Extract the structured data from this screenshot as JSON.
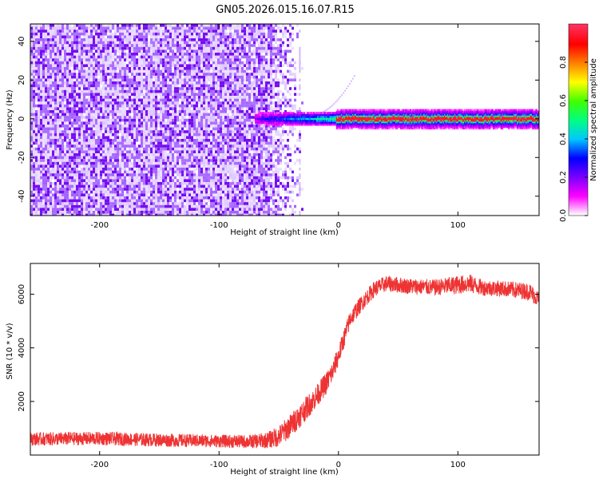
{
  "figure": {
    "title": "GN05.2026.015.16.07.R15"
  },
  "chart_data": [
    {
      "type": "heatmap",
      "xlabel": "Height of straight line (km)",
      "ylabel": "Frequency (Hz)",
      "xlim": [
        -258,
        168
      ],
      "ylim": [
        -50,
        49
      ],
      "x_ticks": [
        -200,
        -100,
        0,
        100
      ],
      "y_ticks": [
        -40,
        -20,
        0,
        20,
        40
      ],
      "x_tick_labels": [
        "-200",
        "-100",
        "0",
        "100"
      ],
      "y_tick_labels": [
        "-40",
        "-20",
        "0",
        "20",
        "40"
      ],
      "colorbar": {
        "label": "Normalized spectral amplitude",
        "range": [
          0,
          1
        ],
        "ticks": [
          0,
          0.2,
          0.4,
          0.6,
          0.8
        ],
        "tick_labels": [
          "0.0",
          "0.2",
          "0.4",
          "0.6",
          "0.8"
        ],
        "colormap": [
          "#ffffff",
          "#ff00ff",
          "#7a00ff",
          "#0000ff",
          "#00c8ff",
          "#00ff80",
          "#40ff00",
          "#ffff00",
          "#ff8000",
          "#ff0000",
          "#ff3060"
        ]
      },
      "description_regions": [
        {
          "x_range": [
            -258,
            -40
          ],
          "freq_range": [
            -50,
            49
          ],
          "amplitude": 0.1,
          "pattern": "noise"
        },
        {
          "x_range": [
            -70,
            -10
          ],
          "freq_range": [
            -2,
            2
          ],
          "amplitude": 0.35,
          "pattern": "emerging line"
        },
        {
          "x_range": [
            -5,
            168
          ],
          "freq_range": [
            -1,
            1
          ],
          "amplitude": 0.95,
          "pattern": "strong line at 0 Hz"
        }
      ],
      "colors": {
        "noise": "#7a00ff",
        "line_core": "#ff2020",
        "line_edge": "#00ff80"
      }
    },
    {
      "type": "line",
      "xlabel": "Height of straight line (km)",
      "ylabel": "SNR (10 * v/v)",
      "xlim": [
        -258,
        168
      ],
      "ylim": [
        0,
        7150
      ],
      "x_ticks": [
        -200,
        -100,
        0,
        100
      ],
      "y_ticks": [
        2000,
        4000,
        6000
      ],
      "x_tick_labels": [
        "-200",
        "-100",
        "0",
        "100"
      ],
      "y_tick_labels": [
        "2000",
        "4000",
        "6000"
      ],
      "series": [
        {
          "color": "#ee3333",
          "x": [
            -258,
            -200,
            -150,
            -100,
            -75,
            -60,
            -50,
            -40,
            -30,
            -20,
            -10,
            -5,
            0,
            5,
            10,
            20,
            30,
            40,
            50,
            60,
            80,
            100,
            110,
            120,
            140,
            160,
            168
          ],
          "y": [
            600,
            620,
            560,
            520,
            500,
            550,
            700,
            1100,
            1600,
            2100,
            2700,
            3100,
            3700,
            4400,
            5100,
            5700,
            6200,
            6400,
            6350,
            6300,
            6250,
            6350,
            6400,
            6250,
            6200,
            6100,
            5800
          ],
          "noise_amplitude": [
            250,
            250,
            250,
            240,
            250,
            300,
            400,
            450,
            450,
            420,
            420,
            400,
            380,
            360,
            330,
            300,
            300,
            300,
            300,
            300,
            300,
            350,
            350,
            300,
            300,
            320,
            320
          ]
        }
      ]
    }
  ]
}
